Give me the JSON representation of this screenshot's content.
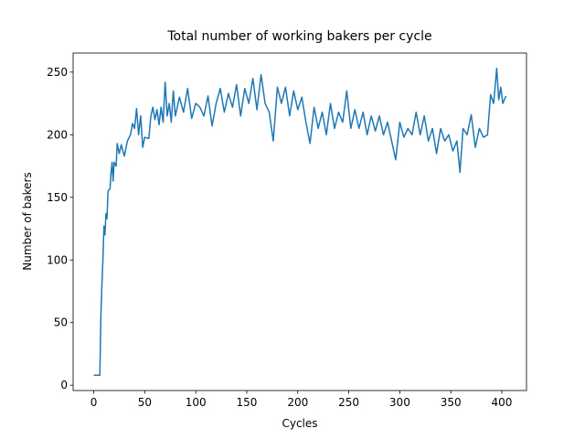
{
  "chart_data": {
    "type": "line",
    "title": "Total number of working bakers per cycle",
    "xlabel": "Cycles",
    "ylabel": "Number of bakers",
    "x": [
      0,
      6,
      7,
      8,
      9,
      10,
      11,
      12,
      13,
      14,
      16,
      17,
      18,
      19,
      20,
      22,
      23,
      25,
      27,
      30,
      33,
      36,
      38,
      40,
      42,
      44,
      46,
      48,
      50,
      54,
      56,
      58,
      60,
      62,
      64,
      66,
      68,
      70,
      72,
      74,
      76,
      78,
      80,
      84,
      88,
      92,
      96,
      100,
      104,
      108,
      112,
      116,
      120,
      124,
      128,
      132,
      136,
      140,
      144,
      148,
      152,
      156,
      160,
      164,
      168,
      172,
      176,
      180,
      184,
      188,
      192,
      196,
      200,
      204,
      208,
      212,
      216,
      220,
      224,
      228,
      232,
      236,
      240,
      244,
      248,
      252,
      256,
      260,
      264,
      268,
      272,
      276,
      280,
      284,
      288,
      292,
      296,
      300,
      304,
      308,
      312,
      316,
      320,
      324,
      328,
      332,
      336,
      340,
      344,
      348,
      352,
      356,
      359,
      362,
      366,
      370,
      374,
      378,
      382,
      386,
      389,
      392,
      395,
      397,
      399,
      401,
      404
    ],
    "series": [
      {
        "name": "bakers",
        "color": "#1f77b4",
        "values": [
          8,
          8,
          55,
          80,
          100,
          127,
          120,
          137,
          133,
          155,
          157,
          170,
          178,
          163,
          178,
          175,
          193,
          185,
          192,
          183,
          195,
          200,
          209,
          205,
          221,
          200,
          215,
          190,
          198,
          197,
          215,
          222,
          212,
          220,
          208,
          222,
          210,
          242,
          215,
          225,
          210,
          235,
          215,
          230,
          218,
          237,
          213,
          225,
          222,
          215,
          231,
          207,
          225,
          237,
          218,
          233,
          222,
          240,
          215,
          237,
          225,
          245,
          220,
          248,
          225,
          218,
          195,
          238,
          225,
          238,
          215,
          235,
          220,
          230,
          210,
          193,
          222,
          205,
          218,
          200,
          225,
          205,
          218,
          210,
          235,
          205,
          220,
          205,
          218,
          200,
          215,
          203,
          215,
          200,
          210,
          195,
          180,
          210,
          198,
          205,
          200,
          218,
          200,
          215,
          195,
          205,
          185,
          205,
          195,
          200,
          187,
          195,
          170,
          205,
          200,
          216,
          190,
          205,
          198,
          200,
          232,
          225,
          253,
          228,
          238,
          225,
          231
        ]
      }
    ],
    "xlim": [
      -20.2,
      424.2
    ],
    "xticks": [
      0,
      50,
      100,
      150,
      200,
      250,
      300,
      350,
      400
    ],
    "ylim": [
      -4.25,
      265.25
    ],
    "yticks": [
      0,
      50,
      100,
      150,
      200,
      250
    ]
  }
}
